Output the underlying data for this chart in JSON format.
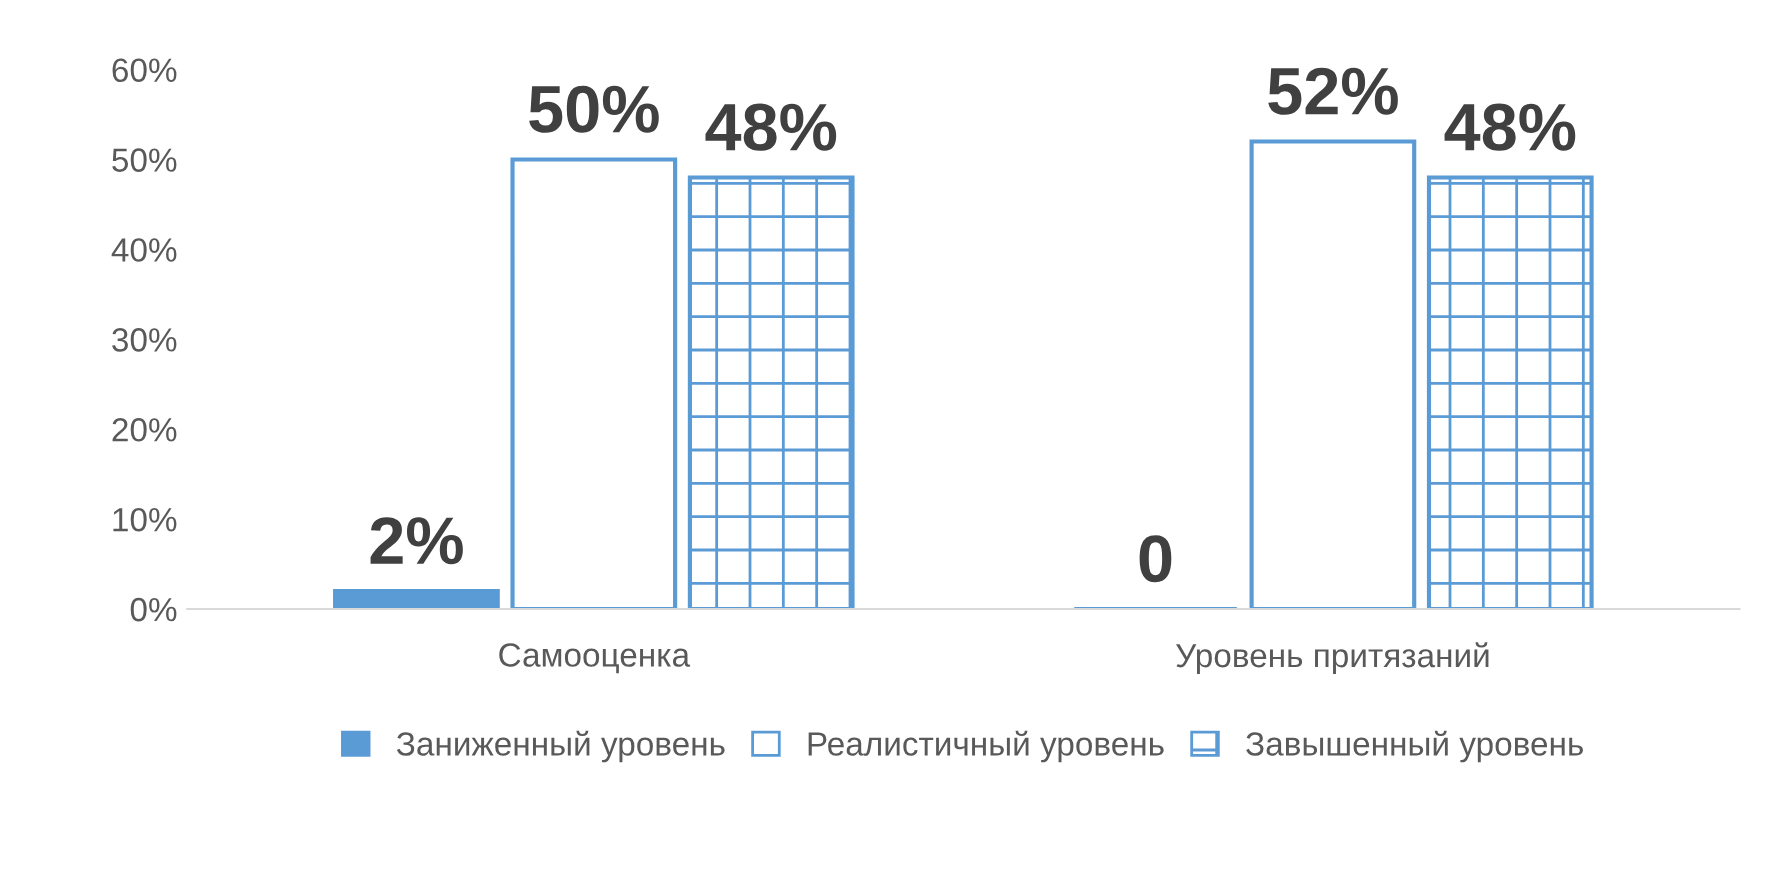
{
  "chart_data": {
    "type": "bar",
    "categories": [
      "Самооценка",
      "Уровень притязаний"
    ],
    "series": [
      {
        "name": "Заниженный уровень",
        "color": "#5b9bd5",
        "values": [
          2,
          0
        ],
        "value_labels": [
          "2%",
          "0"
        ]
      },
      {
        "name": "Реалистичный уровень",
        "color": "#5b9bd5",
        "values": [
          50,
          52
        ],
        "value_labels": [
          "50%",
          "52%"
        ]
      },
      {
        "name": "Завышенный уровень",
        "color": "#5b9bd5",
        "values": [
          48,
          48
        ],
        "value_labels": [
          "48%",
          "48%"
        ]
      }
    ],
    "ylim": [
      0,
      60
    ],
    "yticks": [
      {
        "value": 0,
        "label": "0%"
      },
      {
        "value": 10,
        "label": "10%"
      },
      {
        "value": 20,
        "label": "20%"
      },
      {
        "value": 30,
        "label": "30%"
      },
      {
        "value": 40,
        "label": "40%"
      },
      {
        "value": 50,
        "label": "50%"
      },
      {
        "value": 60,
        "label": "60%"
      }
    ],
    "grid": false,
    "legend": "bottom"
  }
}
